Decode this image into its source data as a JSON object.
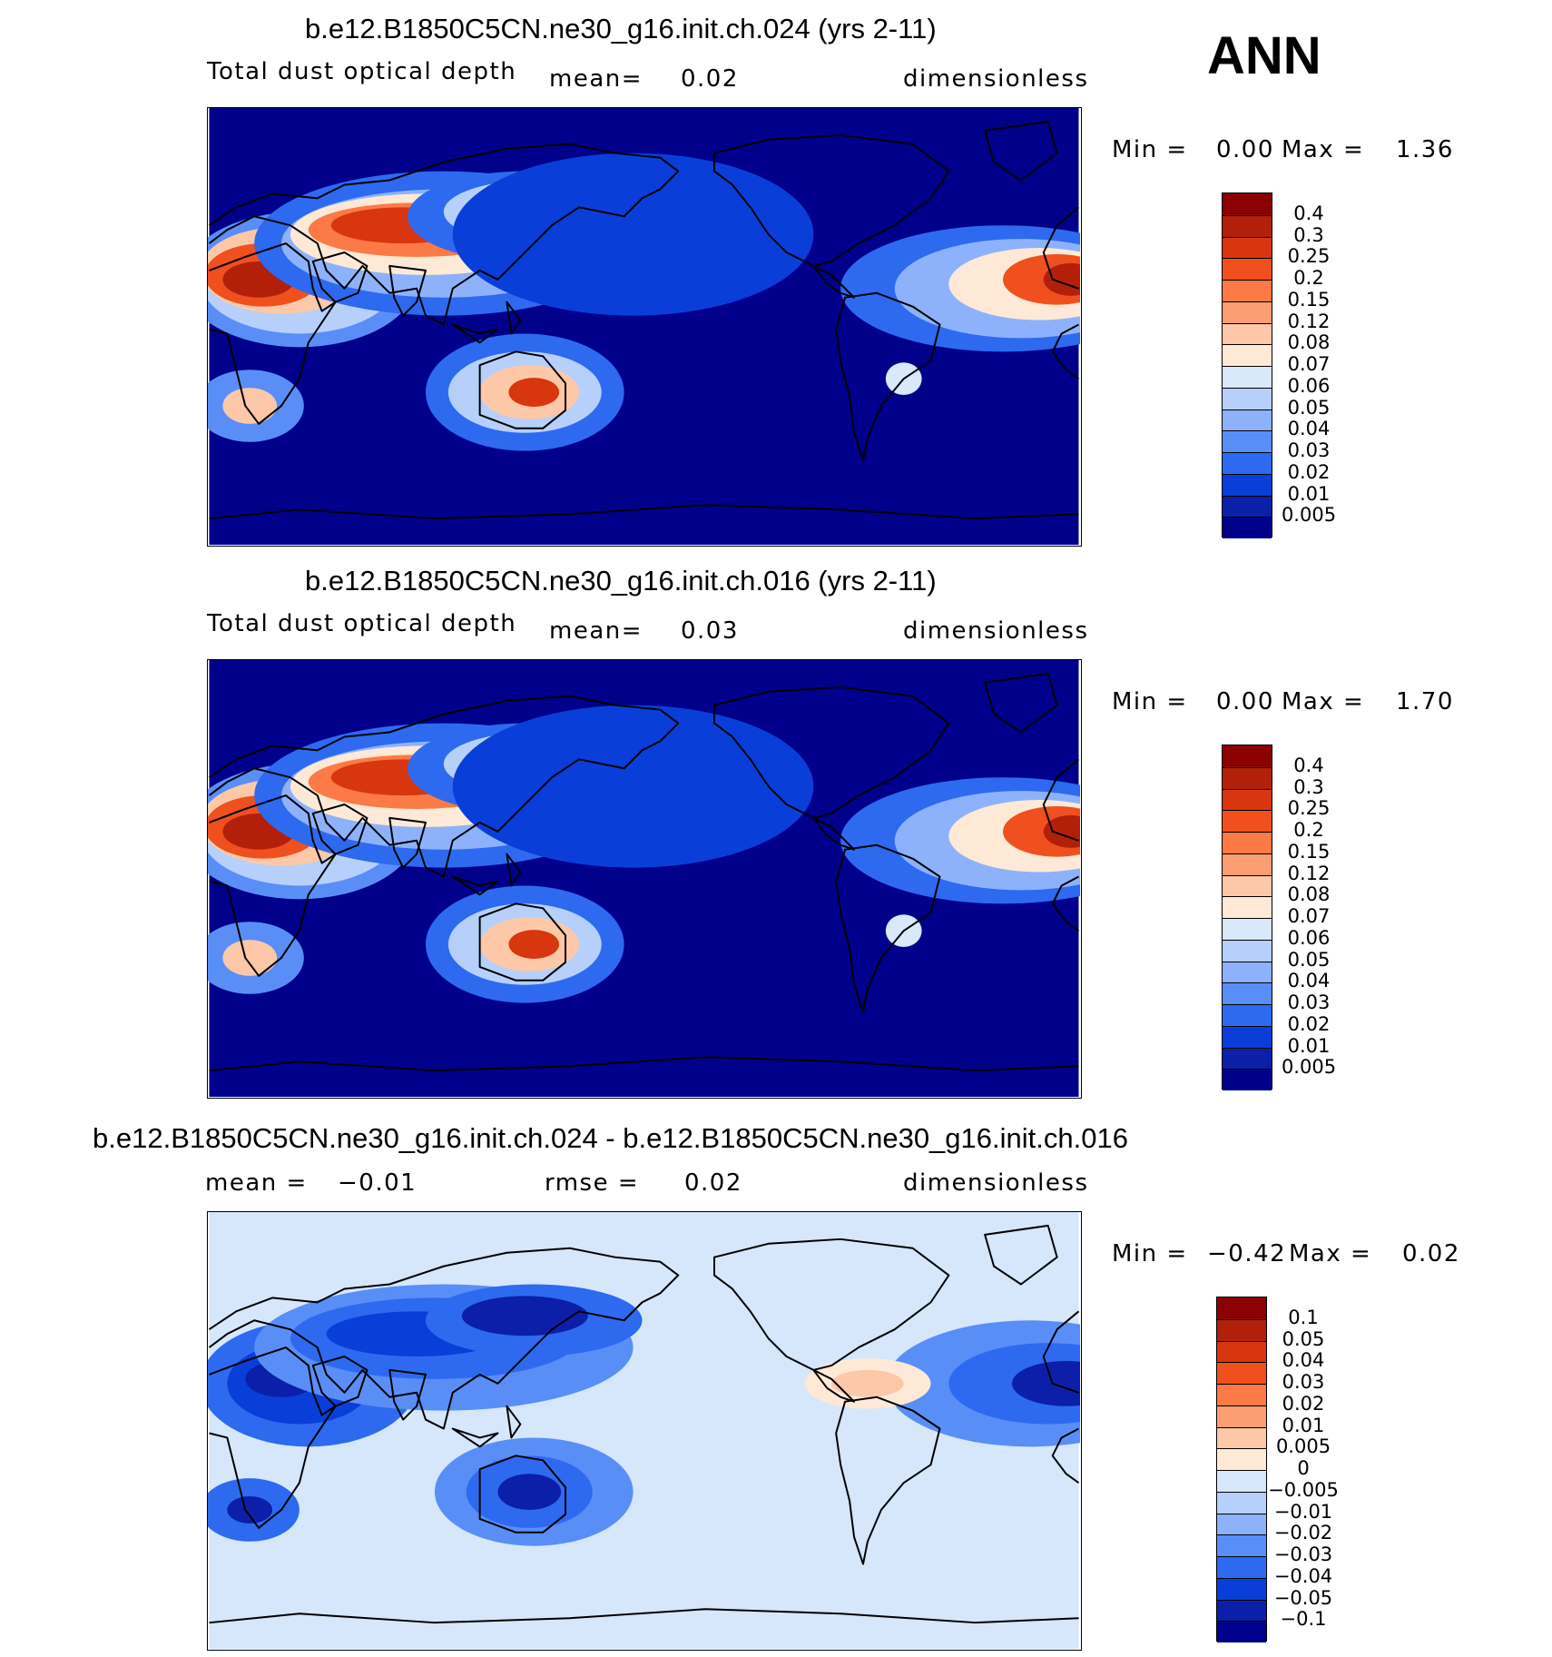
{
  "season": "ANN",
  "panels": [
    {
      "title": "b.e12.B1850C5CN.ne30_g16.init.ch.024 (yrs 2-11)",
      "variable": "Total dust optical depth",
      "stat1_label": "mean=",
      "stat1_value": "0.02",
      "stat2_label": "",
      "stat2_value": "",
      "units": "dimensionless",
      "min_label": "Min =",
      "min_value": "0.00",
      "max_label": "Max =",
      "max_value": "1.36",
      "background": "#00008a",
      "colorbar": {
        "labels": [
          "0.4",
          "0.3",
          "0.25",
          "0.2",
          "0.15",
          "0.12",
          "0.08",
          "0.07",
          "0.06",
          "0.05",
          "0.04",
          "0.03",
          "0.02",
          "0.01",
          "0.005"
        ],
        "colors": [
          "#8b0000",
          "#b3200a",
          "#d8360f",
          "#f0501e",
          "#fc7a45",
          "#fc9e74",
          "#fdc8a8",
          "#fde9d6",
          "#d9e8fb",
          "#b6d0fb",
          "#8db2fb",
          "#5a8ef7",
          "#2d6af0",
          "#0a3ed8",
          "#0b1fa8",
          "#00008a"
        ]
      }
    },
    {
      "title": "b.e12.B1850C5CN.ne30_g16.init.ch.016 (yrs 2-11)",
      "variable": "Total dust optical depth",
      "stat1_label": "mean=",
      "stat1_value": "0.03",
      "stat2_label": "",
      "stat2_value": "",
      "units": "dimensionless",
      "min_label": "Min =",
      "min_value": "0.00",
      "max_label": "Max =",
      "max_value": "1.70",
      "background": "#00008a",
      "colorbar": {
        "labels": [
          "0.4",
          "0.3",
          "0.25",
          "0.2",
          "0.15",
          "0.12",
          "0.08",
          "0.07",
          "0.06",
          "0.05",
          "0.04",
          "0.03",
          "0.02",
          "0.01",
          "0.005"
        ],
        "colors": [
          "#8b0000",
          "#b3200a",
          "#d8360f",
          "#f0501e",
          "#fc7a45",
          "#fc9e74",
          "#fdc8a8",
          "#fde9d6",
          "#d9e8fb",
          "#b6d0fb",
          "#8db2fb",
          "#5a8ef7",
          "#2d6af0",
          "#0a3ed8",
          "#0b1fa8",
          "#00008a"
        ]
      }
    },
    {
      "title": "b.e12.B1850C5CN.ne30_g16.init.ch.024 - b.e12.B1850C5CN.ne30_g16.init.ch.016",
      "variable": "",
      "stat1_label": "mean =",
      "stat1_value": "−0.01",
      "stat2_label": "rmse =",
      "stat2_value": "0.02",
      "units": "dimensionless",
      "min_label": "Min =",
      "min_value": "−0.42",
      "max_label": "Max =",
      "max_value": "0.02",
      "background": "#d6e6fb",
      "colorbar": {
        "labels": [
          "0.1",
          "0.05",
          "0.04",
          "0.03",
          "0.02",
          "0.01",
          "0.005",
          "0",
          "−0.005",
          "−0.01",
          "−0.02",
          "−0.03",
          "−0.04",
          "−0.05",
          "−0.1"
        ],
        "colors": [
          "#8b0000",
          "#b3200a",
          "#d8360f",
          "#f0501e",
          "#fc7a45",
          "#fc9e74",
          "#fdc8a8",
          "#fde9d6",
          "#d6e6fb",
          "#b6d0fb",
          "#8db2fb",
          "#5a8ef7",
          "#2d6af0",
          "#0a3ed8",
          "#0b1fa8",
          "#00008a"
        ]
      }
    }
  ]
}
